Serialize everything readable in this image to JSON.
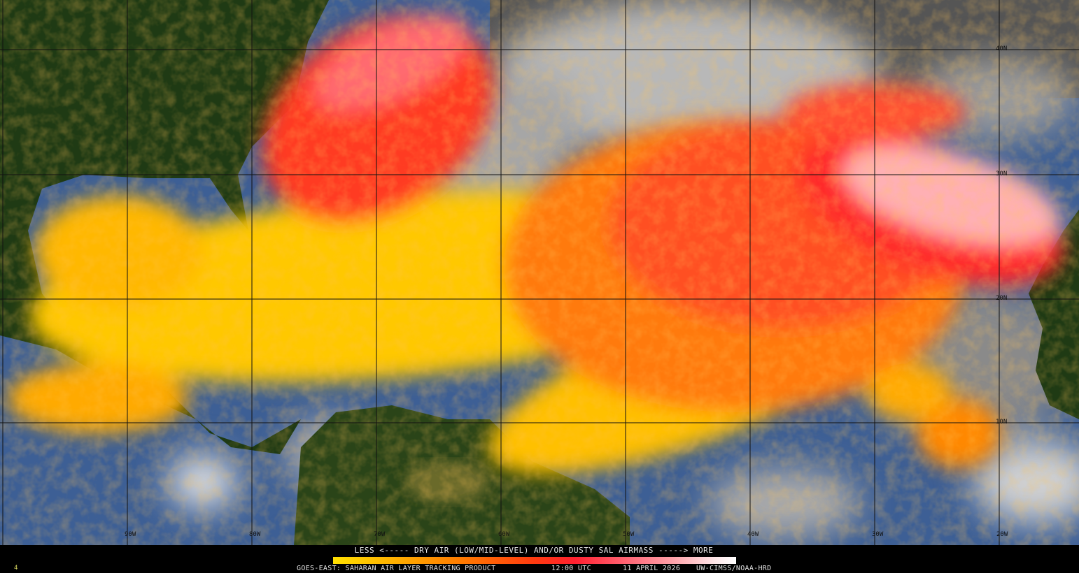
{
  "legend": {
    "title": "LESS <----- DRY AIR (LOW/MID-LEVEL) AND/OR DUSTY SAL AIRMASS -----> MORE",
    "colors": [
      "#ffe000",
      "#ff7a00",
      "#ff2030",
      "#ffa0a8",
      "#ffffff"
    ]
  },
  "footer": {
    "product": "GOES-EAST: SAHARAN AIR LAYER TRACKING PRODUCT",
    "time": "12:00 UTC",
    "date": "11 APRIL 2026",
    "credit": "UW-CIMSS/NOAA-HRD",
    "frame": "4"
  },
  "grid": {
    "longitudes": [
      "90W",
      "80W",
      "70W",
      "60W",
      "50W",
      "40W",
      "30W",
      "20W"
    ],
    "latitudes": [
      "40N",
      "30N",
      "20N",
      "10N"
    ]
  },
  "colors": {
    "land": "#1f3a14",
    "ocean": "#3d5f95",
    "cloud": "#9a9a9a"
  }
}
